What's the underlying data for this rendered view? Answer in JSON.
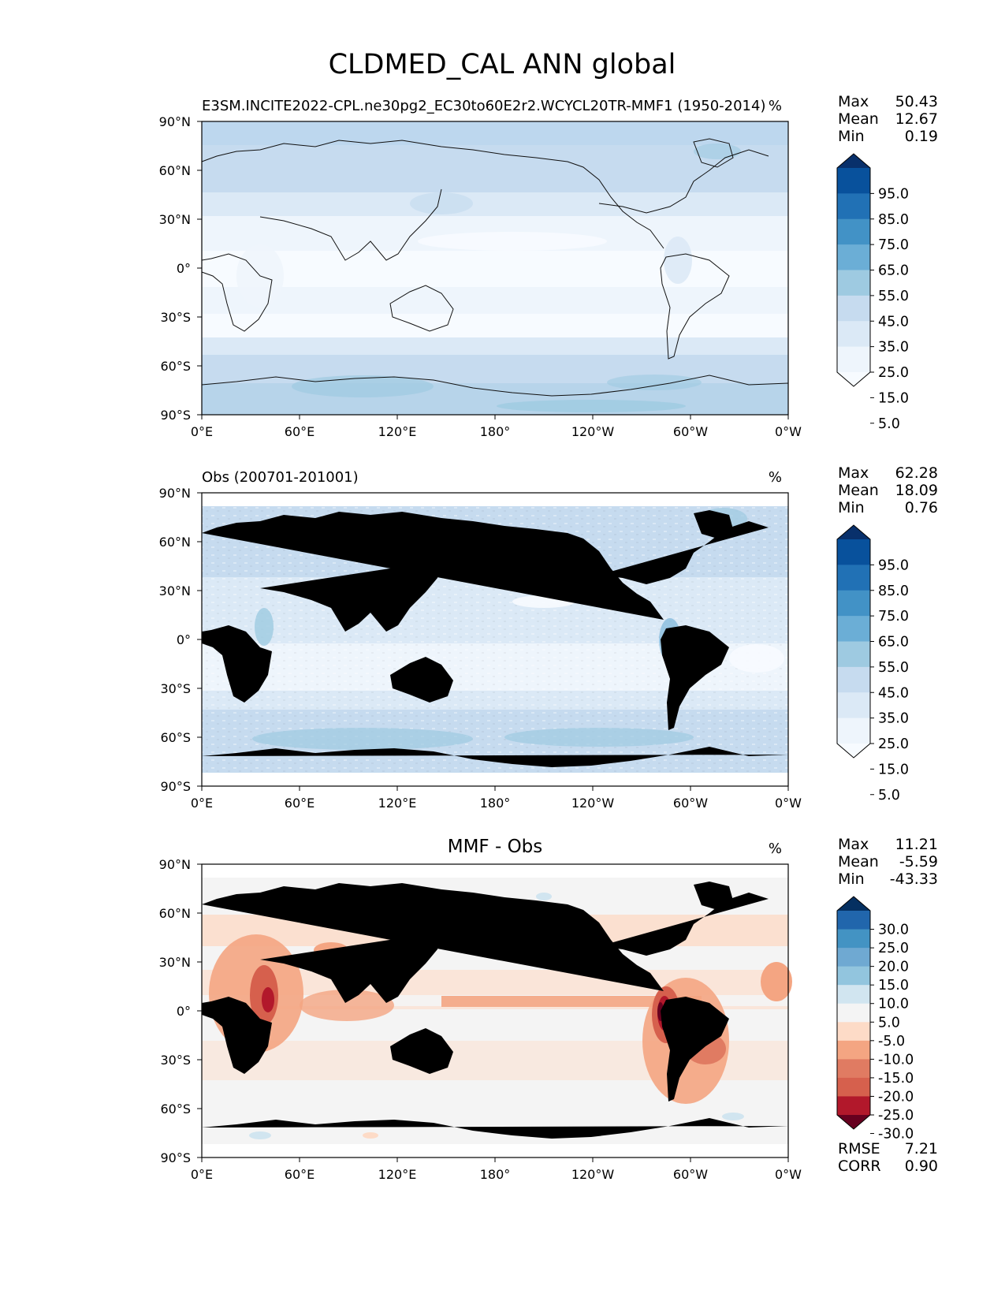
{
  "figure": {
    "title": "CLDMED_CAL ANN global"
  },
  "axes": {
    "lat_labels": [
      "90°N",
      "60°N",
      "30°N",
      "0°",
      "30°S",
      "60°S",
      "90°S"
    ],
    "lon_labels": [
      "0°E",
      "60°E",
      "120°E",
      "180°",
      "120°W",
      "60°W",
      "0°W"
    ]
  },
  "panels": [
    {
      "id": "model",
      "left_title": "E3SM.INCITE2022-CPL.ne30pg2_EC30to60E2r2.WCYCL20TR-MMF1 (1950-2014)",
      "center_title": "",
      "units": "%",
      "stats": [
        {
          "label": "Max",
          "value": "50.43"
        },
        {
          "label": "Mean",
          "value": "12.67"
        },
        {
          "label": "Min",
          "value": "0.19"
        }
      ],
      "colorbar_ticks": [
        "95.0",
        "85.0",
        "75.0",
        "65.0",
        "55.0",
        "45.0",
        "35.0",
        "25.0",
        "15.0",
        "5.0"
      ],
      "colorbar_colors": [
        "#08306b",
        "#08519c",
        "#2171b5",
        "#4292c6",
        "#6baed6",
        "#9ecae1",
        "#c6dbef",
        "#dbe9f6",
        "#eef5fc",
        "#f7fbff"
      ],
      "palette": "blues"
    },
    {
      "id": "obs",
      "left_title": "Obs (200701-201001)",
      "center_title": "",
      "units": "%",
      "stats": [
        {
          "label": "Max",
          "value": "62.28"
        },
        {
          "label": "Mean",
          "value": "18.09"
        },
        {
          "label": "Min",
          "value": "0.76"
        }
      ],
      "colorbar_ticks": [
        "95.0",
        "85.0",
        "75.0",
        "65.0",
        "55.0",
        "45.0",
        "35.0",
        "25.0",
        "15.0",
        "5.0"
      ],
      "colorbar_colors": [
        "#08306b",
        "#08519c",
        "#2171b5",
        "#4292c6",
        "#6baed6",
        "#9ecae1",
        "#c6dbef",
        "#dbe9f6",
        "#eef5fc",
        "#f7fbff"
      ],
      "palette": "blues"
    },
    {
      "id": "diff",
      "left_title": "",
      "center_title": "MMF - Obs",
      "units": "%",
      "stats": [
        {
          "label": "Max",
          "value": "11.21"
        },
        {
          "label": "Mean",
          "value": "-5.59"
        },
        {
          "label": "Min",
          "value": "-43.33"
        }
      ],
      "bottom_stats": [
        {
          "label": "RMSE",
          "value": "7.21"
        },
        {
          "label": "CORR",
          "value": "0.90"
        }
      ],
      "colorbar_ticks": [
        "30.0",
        "25.0",
        "20.0",
        "15.0",
        "10.0",
        "5.0",
        "-5.0",
        "-10.0",
        "-15.0",
        "-20.0",
        "-25.0",
        "-30.0"
      ],
      "colorbar_colors": [
        "#053061",
        "#2166ac",
        "#4393c3",
        "#6fa9d2",
        "#92c5de",
        "#d1e5f0",
        "#f4f4f4",
        "#fddbc7",
        "#f4a582",
        "#e07b62",
        "#d6604d",
        "#b2182b",
        "#67001f"
      ],
      "palette": "redblue"
    }
  ]
}
